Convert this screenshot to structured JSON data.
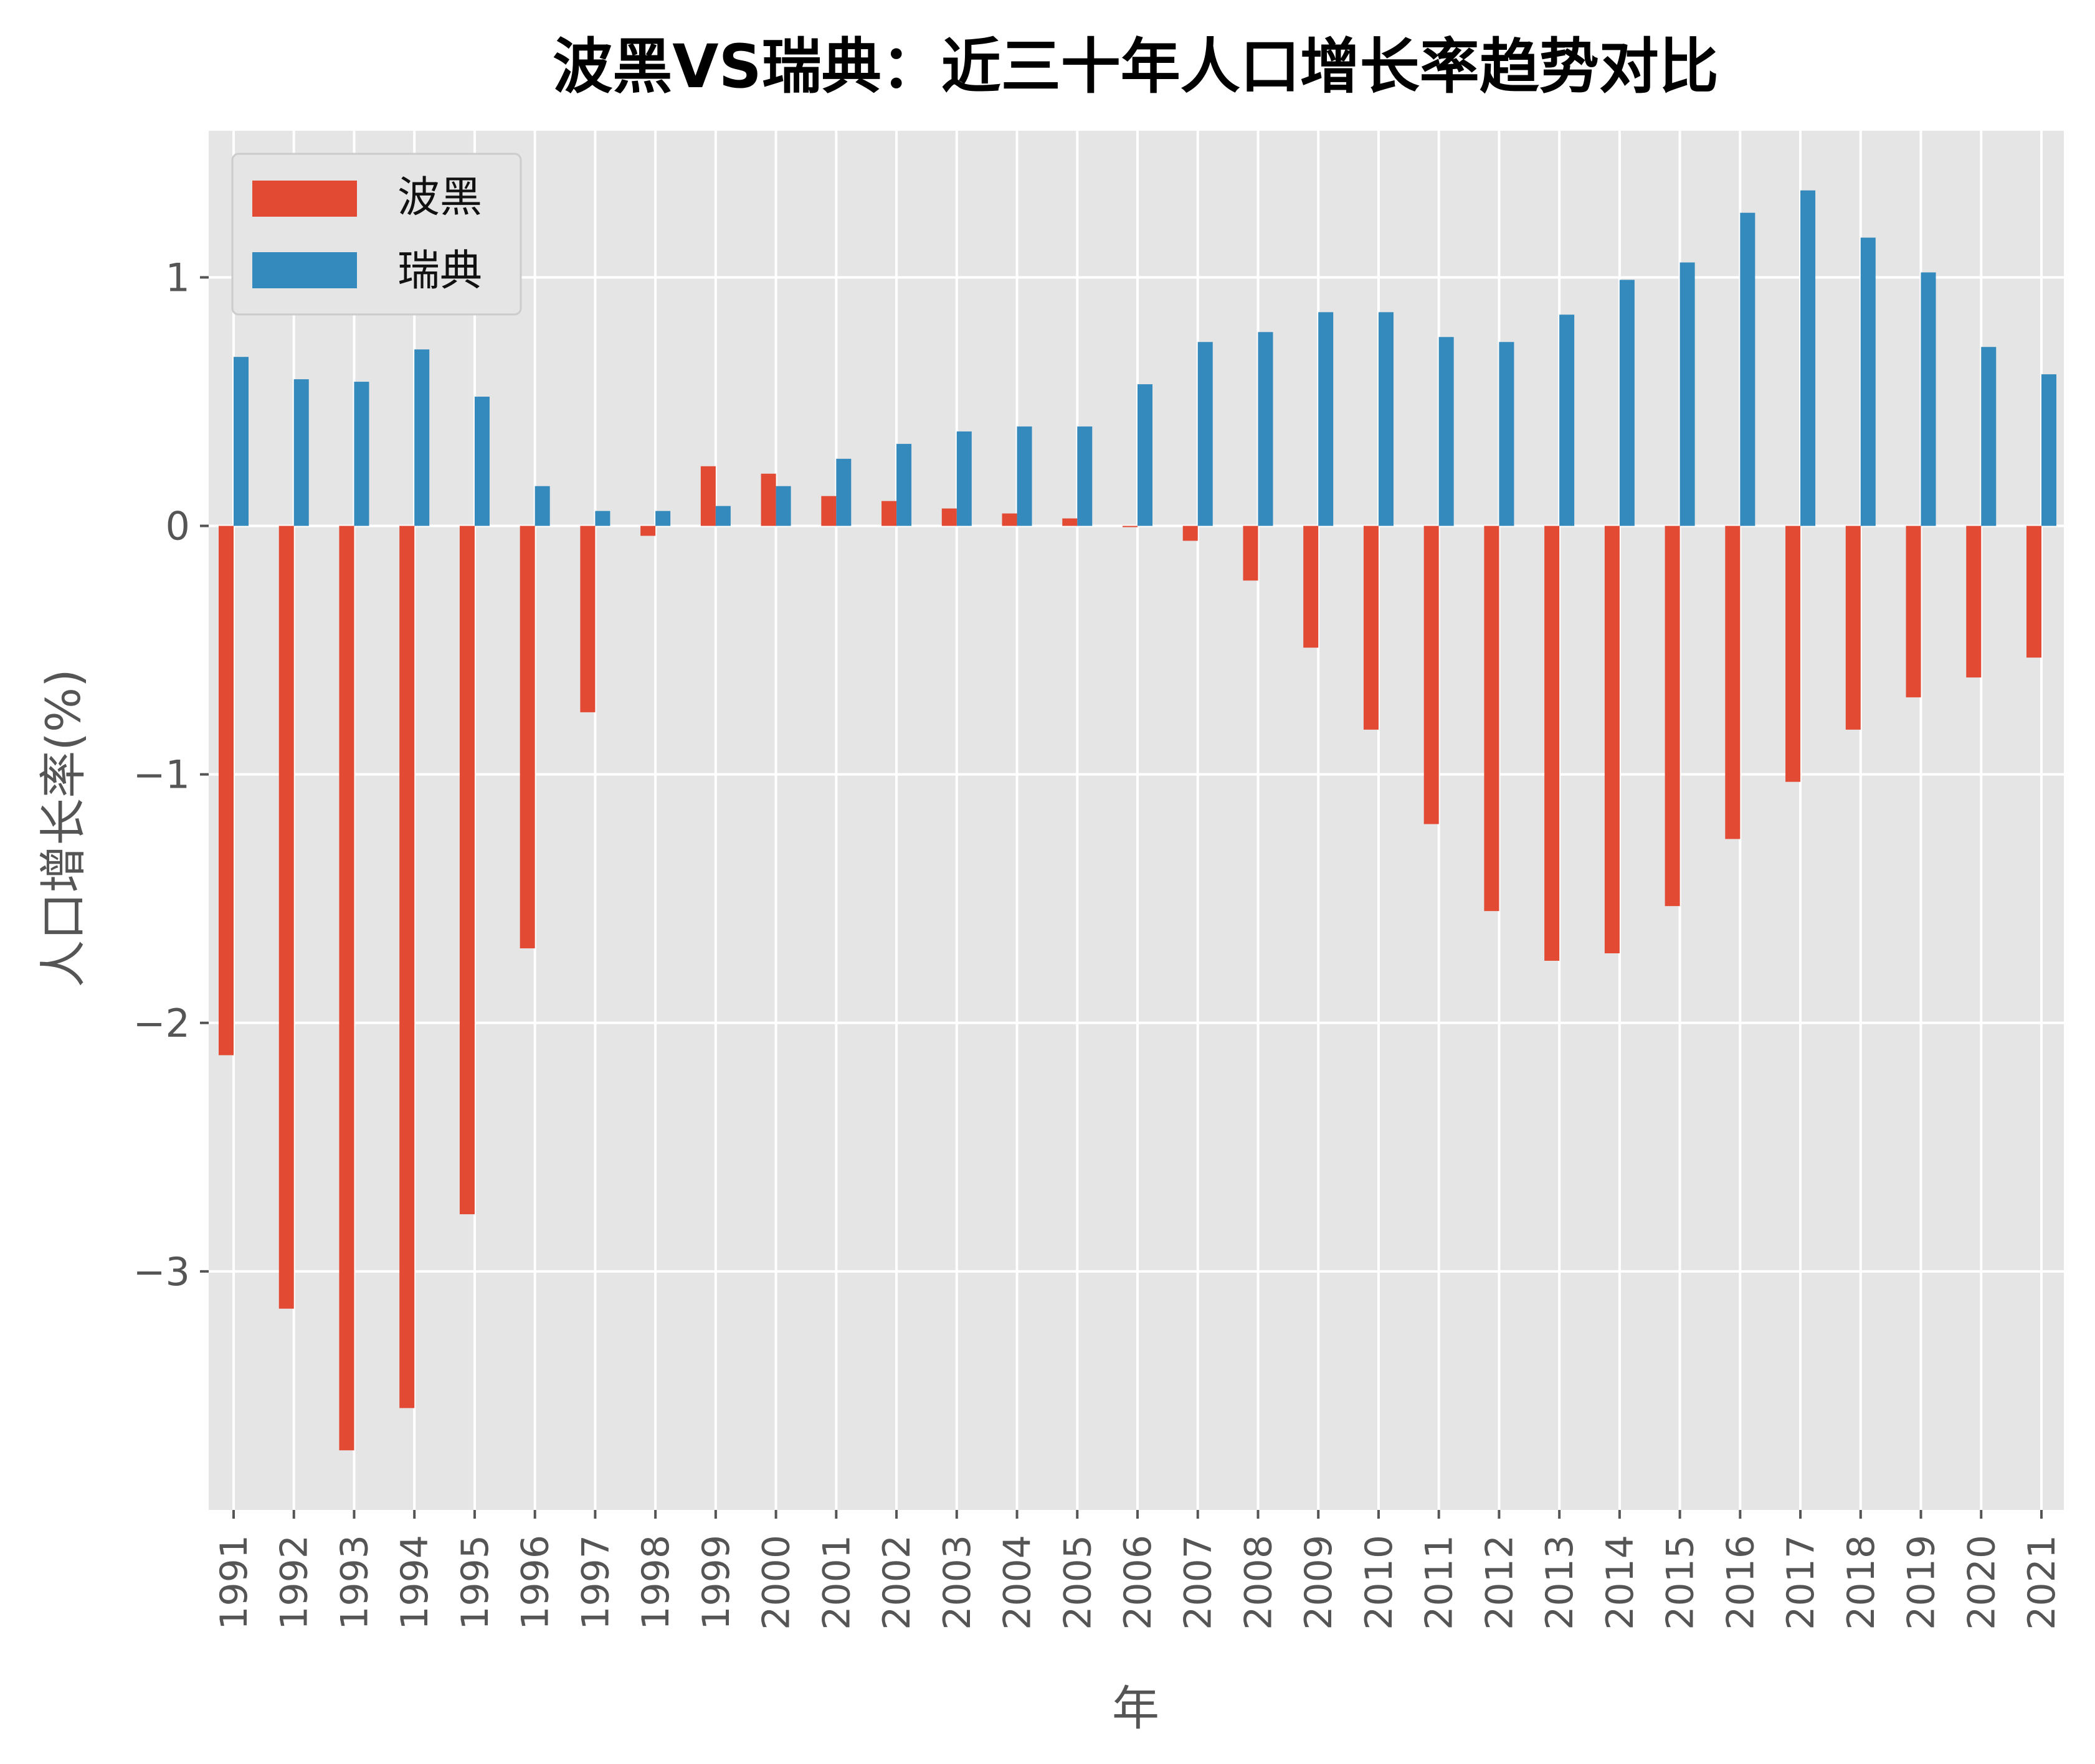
{
  "chart_data": {
    "type": "bar",
    "title": "波黑VS瑞典：近三十年人口增长率趋势对比",
    "xlabel": "年",
    "ylabel": "人口增长率(%)",
    "categories": [
      "1991",
      "1992",
      "1993",
      "1994",
      "1995",
      "1996",
      "1997",
      "1998",
      "1999",
      "2000",
      "2001",
      "2002",
      "2003",
      "2004",
      "2005",
      "2006",
      "2007",
      "2008",
      "2009",
      "2010",
      "2011",
      "2012",
      "2013",
      "2014",
      "2015",
      "2016",
      "2017",
      "2018",
      "2019",
      "2020",
      "2021"
    ],
    "series": [
      {
        "name": "波黑",
        "color": "#E24A33",
        "values": [
          -2.13,
          -3.15,
          -3.72,
          -3.55,
          -2.77,
          -1.7,
          -0.75,
          -0.04,
          0.24,
          0.21,
          0.12,
          0.1,
          0.07,
          0.05,
          0.03,
          -0.005,
          -0.06,
          -0.22,
          -0.49,
          -0.82,
          -1.2,
          -1.55,
          -1.75,
          -1.72,
          -1.53,
          -1.26,
          -1.03,
          -0.82,
          -0.69,
          -0.61,
          -0.53
        ]
      },
      {
        "name": "瑞典",
        "color": "#348ABD",
        "values": [
          0.68,
          0.59,
          0.58,
          0.71,
          0.52,
          0.16,
          0.06,
          0.06,
          0.08,
          0.16,
          0.27,
          0.33,
          0.38,
          0.4,
          0.4,
          0.57,
          0.74,
          0.78,
          0.86,
          0.86,
          0.76,
          0.74,
          0.85,
          0.99,
          1.06,
          1.26,
          1.35,
          1.16,
          1.02,
          0.72,
          0.61
        ]
      }
    ],
    "yticks": [
      1,
      0,
      -1,
      -2,
      -3
    ],
    "ytick_labels": [
      "1",
      "0",
      "−1",
      "−2",
      "−3"
    ],
    "ylim": [
      -3.96,
      1.59
    ],
    "grid": true,
    "legend_position": "top-left",
    "background": "#E5E5E5"
  }
}
